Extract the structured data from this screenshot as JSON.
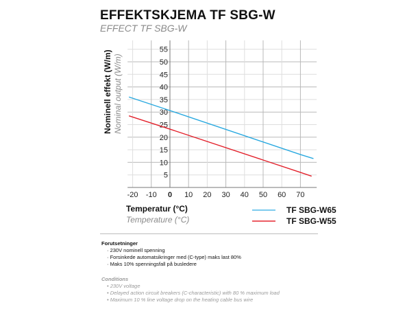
{
  "header": {
    "title": "EFFEKTSKJEMA TF SBG-W",
    "subtitle": "EFFECT TF SBG-W"
  },
  "axes": {
    "ylabel": "Nominell effekt (W/m)",
    "ylabel_en": "Nominal output (W/m)",
    "xlabel": "Temperatur (°C)",
    "xlabel_en": "Temperature (°C)"
  },
  "legend": [
    {
      "label": "TF SBG-W65",
      "color": "#29a9e0"
    },
    {
      "label": "TF SBG-W55",
      "color": "#e3202a"
    }
  ],
  "notes": {
    "heading": "Forutsetninger",
    "items": [
      "· 230V nominell spenning",
      "· Forsinkede automatsikringer med (C-type) maks last 80%",
      "· Maks 10% spenningsfall på busledere"
    ]
  },
  "conditions": {
    "heading": "Conditions",
    "items": [
      "• 230V voltage",
      "• Delayed action circuit breakers (C-characteristic) with 80 % maximum load",
      "• Maximum 10 % line voltage drop on the heating cable bus wire"
    ]
  },
  "chart_data": {
    "type": "line",
    "title": "EFFEKTSKJEMA TF SBG-W",
    "subtitle": "EFFECT TF SBG-W",
    "xlabel": "Temperatur (°C) / Temperature (°C)",
    "ylabel": "Nominell effekt (W/m) / Nominal output (W/m)",
    "xlim": [
      -22,
      78
    ],
    "ylim": [
      0,
      58
    ],
    "x_ticks": [
      -20,
      -10,
      0,
      10,
      20,
      30,
      40,
      50,
      60,
      70
    ],
    "y_ticks": [
      5,
      10,
      15,
      20,
      25,
      30,
      35,
      40,
      45,
      50,
      55
    ],
    "grid": true,
    "legend_position": "bottom-right",
    "series": [
      {
        "name": "TF SBG-W65",
        "color": "#29a9e0",
        "x": [
          -22,
          0,
          70,
          77
        ],
        "values": [
          36.0,
          30.6,
          13.1,
          11.5
        ]
      },
      {
        "name": "TF SBG-W55",
        "color": "#e3202a",
        "x": [
          -22,
          0,
          70,
          76
        ],
        "values": [
          28.5,
          23.2,
          6.0,
          4.5
        ]
      }
    ]
  }
}
